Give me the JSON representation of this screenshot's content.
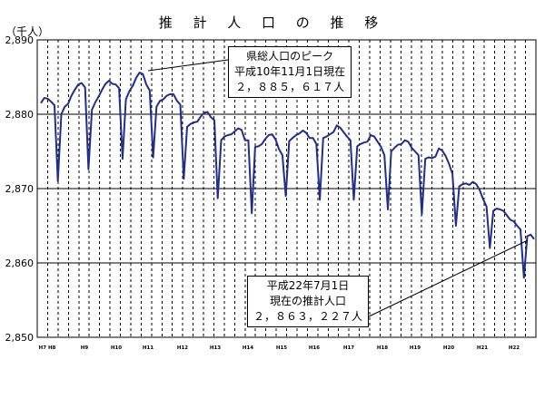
{
  "title": "推 計 人 口 の 推 移",
  "unit_label": "（千人）",
  "annotations": {
    "peak": [
      "県総人口のピーク",
      "平成10年11月1日現在",
      "２，８８５，６１７人"
    ],
    "current": [
      "平成22年7月1日",
      "現在の推計人口",
      "２，８６３，２２７人"
    ]
  },
  "chart_data": {
    "type": "line",
    "title": "推 計 人 口 の 推 移",
    "ylabel": "（千人）",
    "xlabel": "",
    "ylim": [
      2850,
      2890
    ],
    "yticks": [
      2850,
      2860,
      2870,
      2880,
      2890
    ],
    "ytick_labels": [
      "2,850",
      "2,860",
      "2,870",
      "2,880",
      "2,890"
    ],
    "grid": {
      "horizontal": true,
      "vertical_dashed": true
    },
    "x_period": "monthly, H7/H8 to H22",
    "xtick_labels": [
      "H7 H8",
      "H9",
      "H10",
      "H11",
      "H12",
      "H13",
      "H14",
      "H15",
      "H16",
      "H17",
      "H18",
      "H19",
      "H20",
      "H21",
      "H22"
    ],
    "series": [
      {
        "color": "#1f2f8a",
        "values": [
          2881.5,
          2882.2,
          2882.1,
          2881.7,
          2881.2,
          2871.0,
          2880.0,
          2881.0,
          2881.4,
          2882.5,
          2883.3,
          2884.0,
          2884.2,
          2883.6,
          2872.6,
          2880.6,
          2881.6,
          2882.4,
          2883.3,
          2884.1,
          2884.5,
          2884.1,
          2884.0,
          2883.5,
          2874.0,
          2882.0,
          2883.1,
          2883.8,
          2884.9,
          2885.6,
          2885.4,
          2884.0,
          2883.2,
          2874.2,
          2881.0,
          2881.8,
          2882.0,
          2882.5,
          2882.7,
          2882.7,
          2881.8,
          2881.3,
          2871.3,
          2878.3,
          2878.7,
          2878.9,
          2879.0,
          2879.7,
          2880.2,
          2880.3,
          2879.6,
          2879.2,
          2868.7,
          2876.5,
          2877.0,
          2877.2,
          2877.3,
          2877.7,
          2878.1,
          2877.9,
          2876.5,
          2876.5,
          2866.7,
          2875.6,
          2875.7,
          2876.0,
          2876.7,
          2877.2,
          2877.3,
          2876.6,
          2875.3,
          2874.5,
          2869.0,
          2876.4,
          2876.8,
          2877.2,
          2877.4,
          2877.8,
          2877.5,
          2876.8,
          2876.8,
          2876.0,
          2868.5,
          2876.8,
          2877.0,
          2877.3,
          2877.6,
          2878.5,
          2878.2,
          2877.6,
          2877.0,
          2876.5,
          2868.5,
          2875.7,
          2876.0,
          2876.2,
          2876.3,
          2877.2,
          2877.0,
          2876.3,
          2875.6,
          2874.5,
          2867.2,
          2875.0,
          2875.5,
          2875.9,
          2876.0,
          2876.5,
          2876.3,
          2875.5,
          2875.0,
          2874.5,
          2866.5,
          2874.0,
          2874.2,
          2874.1,
          2874.3,
          2875.4,
          2875.1,
          2874.4,
          2873.3,
          2872.0,
          2865.0,
          2870.3,
          2870.6,
          2870.7,
          2870.5,
          2870.9,
          2870.6,
          2869.8,
          2868.6,
          2867.6,
          2862.0,
          2867.0,
          2867.3,
          2867.2,
          2867.0,
          2866.4,
          2865.8,
          2865.6,
          2865.0,
          2864.5,
          2858.0,
          2863.6,
          2863.8,
          2863.2
        ]
      }
    ]
  }
}
